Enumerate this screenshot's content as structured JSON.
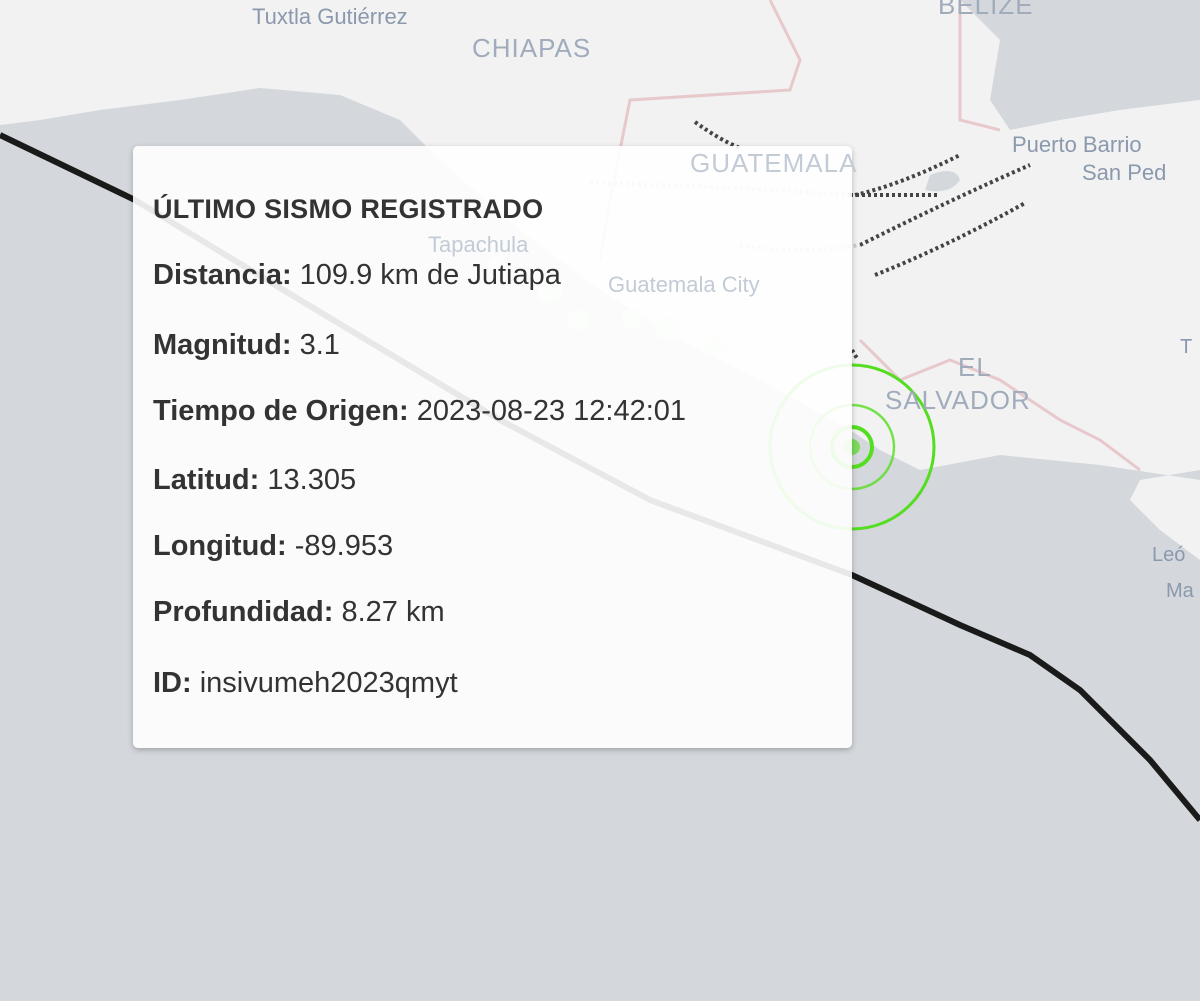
{
  "map": {
    "colors": {
      "sea": "#d4d8dc",
      "land": "#f2f2f2",
      "border": "#e7c9cc",
      "track": "#1a1a1a",
      "epicenter": "#55dd22",
      "past_events": "#e2f5d8"
    },
    "labels": {
      "tuxtla": "Tuxtla Gutiérrez",
      "chiapas": "CHIAPAS",
      "belize": "BELIZE",
      "guatemala": "GUATEMALA",
      "tapachula": "Tapachula",
      "guatemala_city": "Guatemala City",
      "puerto_barrios": "Puerto Barrio",
      "san_pedro": "San Ped",
      "el": "EL",
      "salvador": "SALVADOR",
      "leon": "Leó",
      "ma": "Ma",
      "t": "T"
    }
  },
  "popup": {
    "title": "ÚLTIMO SISMO REGISTRADO",
    "rows": [
      {
        "label": "Distancia:",
        "value": "109.9 km de Jutiapa"
      },
      {
        "label": "Magnitud:",
        "value": "3.1"
      },
      {
        "label": "Tiempo de Origen:",
        "value": "2023-08-23 12:42:01"
      },
      {
        "label": "Latitud:",
        "value": "13.305"
      },
      {
        "label": "Longitud:",
        "value": "-89.953"
      },
      {
        "label": "Profundidad:",
        "value": "8.27 km"
      },
      {
        "label": "ID:",
        "value": "insivumeh2023qmyt"
      }
    ]
  }
}
